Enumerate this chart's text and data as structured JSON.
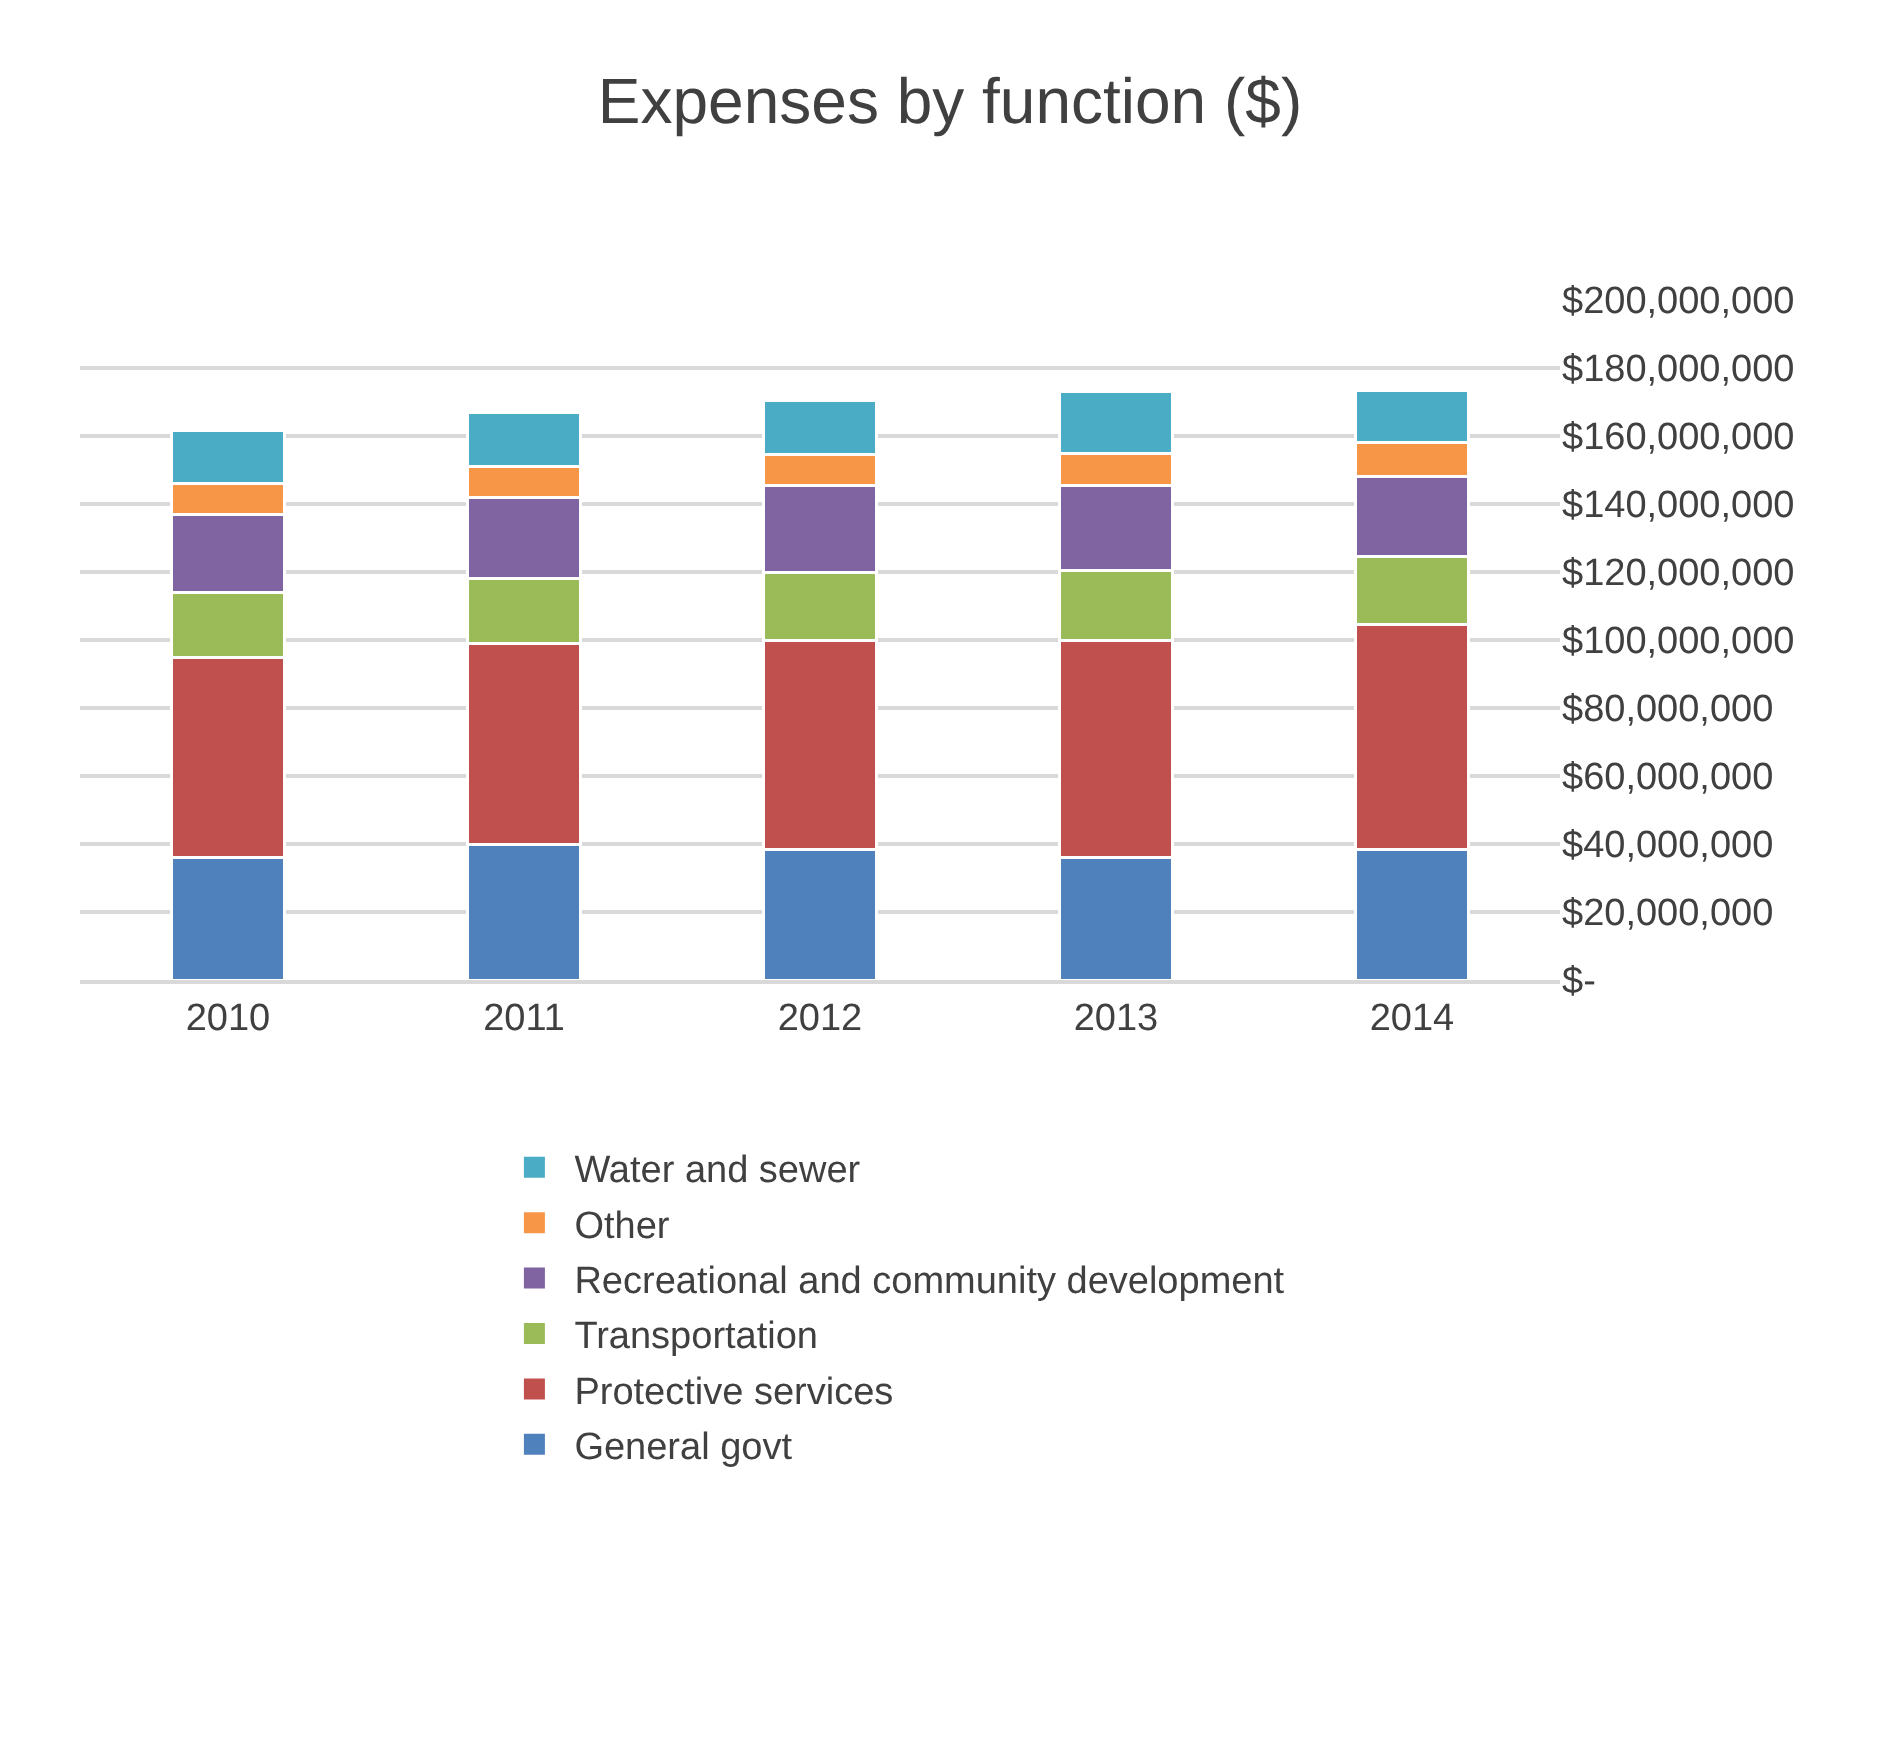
{
  "chart_data": {
    "type": "bar",
    "title": "Expenses by function ($)",
    "stacked": true,
    "categories": [
      "2010",
      "2011",
      "2012",
      "2013",
      "2014"
    ],
    "series": [
      {
        "name": "General govt",
        "color": "#4f81bd",
        "values": [
          36000000,
          40000000,
          38500000,
          36000000,
          38500000
        ]
      },
      {
        "name": "Protective services",
        "color": "#c0504d",
        "values": [
          59000000,
          59000000,
          61500000,
          64000000,
          66000000
        ]
      },
      {
        "name": "Transportation",
        "color": "#9bbb59",
        "values": [
          19000000,
          19000000,
          20000000,
          20500000,
          20000000
        ]
      },
      {
        "name": "Recreational and community development",
        "color": "#8064a2",
        "values": [
          23000000,
          24000000,
          25500000,
          25000000,
          23500000
        ]
      },
      {
        "name": "Other",
        "color": "#f79646",
        "values": [
          9000000,
          9000000,
          9000000,
          9500000,
          10000000
        ]
      },
      {
        "name": "Water and sewer",
        "color": "#4bacc6",
        "values": [
          15500000,
          16000000,
          16000000,
          18000000,
          15500000
        ]
      }
    ],
    "ylim": [
      0,
      200000000
    ],
    "yticks": [
      {
        "value": 0,
        "label": "$-"
      },
      {
        "value": 20000000,
        "label": "$20,000,000"
      },
      {
        "value": 40000000,
        "label": "$40,000,000"
      },
      {
        "value": 60000000,
        "label": "$60,000,000"
      },
      {
        "value": 80000000,
        "label": "$80,000,000"
      },
      {
        "value": 100000000,
        "label": "$100,000,000"
      },
      {
        "value": 120000000,
        "label": "$120,000,000"
      },
      {
        "value": 140000000,
        "label": "$140,000,000"
      },
      {
        "value": 160000000,
        "label": "$160,000,000"
      },
      {
        "value": 180000000,
        "label": "$180,000,000"
      },
      {
        "value": 200000000,
        "label": "$200,000,000"
      }
    ],
    "grid": "y",
    "legend": "bottom"
  }
}
